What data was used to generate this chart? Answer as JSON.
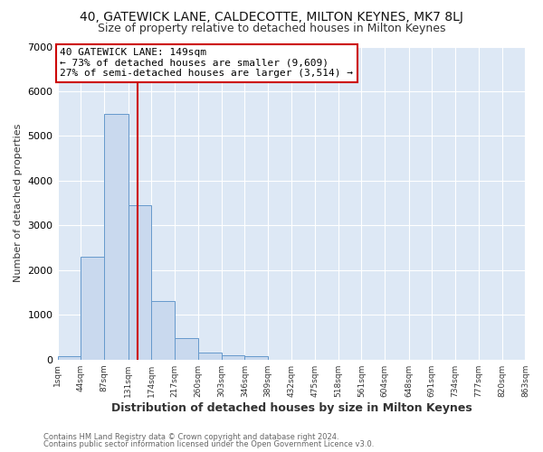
{
  "title1": "40, GATEWICK LANE, CALDECOTTE, MILTON KEYNES, MK7 8LJ",
  "title2": "Size of property relative to detached houses in Milton Keynes",
  "xlabel": "Distribution of detached houses by size in Milton Keynes",
  "ylabel": "Number of detached properties",
  "bin_edges": [
    1,
    44,
    87,
    131,
    174,
    217,
    260,
    303,
    346,
    389,
    432,
    475,
    518,
    561,
    604,
    648,
    691,
    734,
    777,
    820,
    863
  ],
  "bin_labels": [
    "1sqm",
    "44sqm",
    "87sqm",
    "131sqm",
    "174sqm",
    "217sqm",
    "260sqm",
    "303sqm",
    "346sqm",
    "389sqm",
    "432sqm",
    "475sqm",
    "518sqm",
    "561sqm",
    "604sqm",
    "648sqm",
    "691sqm",
    "734sqm",
    "777sqm",
    "820sqm",
    "863sqm"
  ],
  "bar_heights": [
    75,
    2300,
    5500,
    3450,
    1300,
    470,
    160,
    90,
    80,
    0,
    0,
    0,
    0,
    0,
    0,
    0,
    0,
    0,
    0,
    0
  ],
  "bar_color": "#c9d9ee",
  "bar_edge_color": "#6699cc",
  "property_size": 149,
  "vline_color": "#cc0000",
  "ylim": [
    0,
    7000
  ],
  "annotation_text": "40 GATEWICK LANE: 149sqm\n← 73% of detached houses are smaller (9,609)\n27% of semi-detached houses are larger (3,514) →",
  "annotation_box_color": "#ffffff",
  "annotation_box_edge_color": "#cc0000",
  "footer1": "Contains HM Land Registry data © Crown copyright and database right 2024.",
  "footer2": "Contains public sector information licensed under the Open Government Licence v3.0.",
  "bg_color": "#ffffff",
  "plot_bg_color": "#dde8f5",
  "grid_color": "#ffffff",
  "title1_fontsize": 10,
  "title2_fontsize": 9
}
